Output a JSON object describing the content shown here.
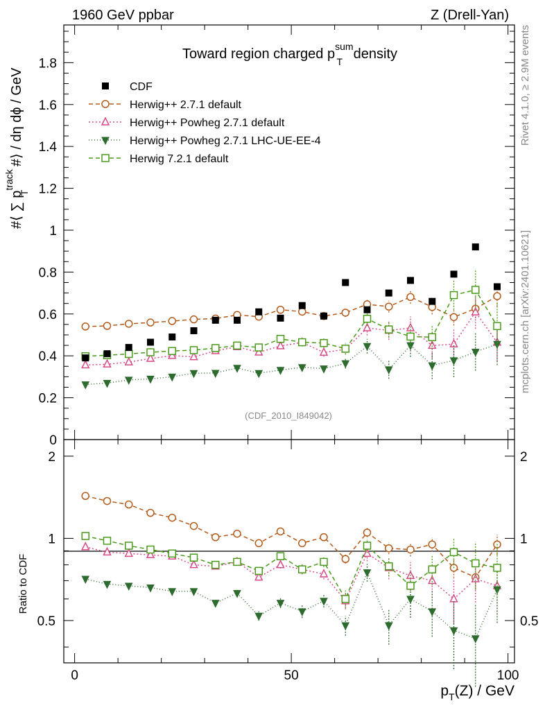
{
  "header": {
    "left": "1960 GeV ppbar",
    "right": "Z (Drell-Yan)"
  },
  "side": {
    "rivet": "Rivet 4.1.0, ≥ 2.9M events",
    "mcplots": "mcplots.cern.ch [arXiv:2401.10621]"
  },
  "chart_data": {
    "type": "scatter",
    "title_parts": {
      "main": "Toward region charged p",
      "sup": "sum",
      "sub": "T",
      "tail": " density"
    },
    "watermark": "(CDF_2010_I849042)",
    "ylabel_parts": [
      "#⟨ ∑ p",
      "track",
      "T",
      " #⟩ / dη dϕ / GeV"
    ],
    "xlabel_parts": {
      "main": "p",
      "sub": "T",
      "tail": "(Z) / GeV"
    },
    "ratio_ylabel": "Ratio to CDF",
    "xlim": [
      -2.5,
      101.5
    ],
    "ylim_main": [
      0,
      1.98
    ],
    "ylim_ratio": [
      0.35,
      2.3
    ],
    "main_yticks": [
      "0",
      "0.2",
      "0.4",
      "0.6",
      "0.8",
      "1",
      "1.2",
      "1.4",
      "1.6",
      "1.8"
    ],
    "ratio_yticks": [
      "0.5",
      "1",
      "2"
    ],
    "xticks": [
      "0",
      "50",
      "100"
    ],
    "x": [
      2.5,
      7.5,
      12.5,
      17.5,
      22.5,
      27.5,
      32.5,
      37.5,
      42.5,
      47.5,
      52.5,
      57.5,
      62.5,
      67.5,
      72.5,
      77.5,
      82.5,
      87.5,
      92.5,
      97.5
    ],
    "data": {
      "name": "CDF",
      "values": [
        0.39,
        0.41,
        0.44,
        0.465,
        0.49,
        0.52,
        0.57,
        0.57,
        0.61,
        0.58,
        0.64,
        0.59,
        0.75,
        0.62,
        0.7,
        0.76,
        0.66,
        0.79,
        0.92,
        0.73
      ]
    },
    "series": [
      {
        "name": "Herwig++ 2.7.1 default",
        "color": "#b35a1a",
        "marker": "circle-open",
        "dash": "6,4",
        "values": [
          0.54,
          0.543,
          0.553,
          0.559,
          0.566,
          0.574,
          0.578,
          0.595,
          0.587,
          0.62,
          0.611,
          0.59,
          0.606,
          0.646,
          0.635,
          0.681,
          0.633,
          0.585,
          0.625,
          0.685
        ],
        "ratio": [
          1.43,
          1.37,
          1.33,
          1.24,
          1.19,
          1.11,
          1.01,
          1.04,
          0.96,
          1.06,
          0.96,
          1.01,
          0.84,
          1.05,
          0.92,
          0.91,
          0.95,
          0.78,
          0.72,
          0.95
        ],
        "err": [
          0.005,
          0.005,
          0.005,
          0.005,
          0.006,
          0.007,
          0.008,
          0.01,
          0.012,
          0.014,
          0.016,
          0.018,
          0.02,
          0.025,
          0.028,
          0.032,
          0.035,
          0.04,
          0.045,
          0.05
        ]
      },
      {
        "name": "Herwig++ Powheg 2.7.1 default",
        "color": "#d84a88",
        "marker": "triangle-open",
        "dash": "2,3",
        "values": [
          0.356,
          0.36,
          0.37,
          0.387,
          0.401,
          0.395,
          0.424,
          0.443,
          0.417,
          0.447,
          0.464,
          0.416,
          0.431,
          0.533,
          0.521,
          0.533,
          0.449,
          0.456,
          0.609,
          0.464
        ],
        "ratio": [
          0.93,
          0.89,
          0.88,
          0.87,
          0.86,
          0.8,
          0.79,
          0.82,
          0.72,
          0.8,
          0.77,
          0.74,
          0.59,
          0.88,
          0.78,
          0.73,
          0.7,
          0.6,
          0.71,
          0.67
        ],
        "err": [
          0.005,
          0.005,
          0.005,
          0.006,
          0.007,
          0.008,
          0.009,
          0.011,
          0.013,
          0.015,
          0.018,
          0.02,
          0.025,
          0.035,
          0.045,
          0.055,
          0.06,
          0.07,
          0.08,
          0.09
        ]
      },
      {
        "name": "Herwig++ Powheg 2.7.1 LHC-UE-EE-4",
        "color": "#2e6b2e",
        "marker": "triangle-down-filled",
        "dash": "1,3",
        "values": [
          0.263,
          0.27,
          0.285,
          0.29,
          0.3,
          0.317,
          0.318,
          0.342,
          0.317,
          0.332,
          0.345,
          0.339,
          0.364,
          0.446,
          0.335,
          0.45,
          0.354,
          0.378,
          0.419,
          0.456
        ],
        "ratio": [
          0.71,
          0.68,
          0.67,
          0.66,
          0.64,
          0.64,
          0.58,
          0.63,
          0.52,
          0.58,
          0.54,
          0.59,
          0.48,
          0.75,
          0.48,
          0.6,
          0.54,
          0.46,
          0.43,
          0.65
        ],
        "err": [
          0.004,
          0.004,
          0.005,
          0.006,
          0.007,
          0.008,
          0.009,
          0.011,
          0.013,
          0.015,
          0.018,
          0.02,
          0.025,
          0.035,
          0.045,
          0.055,
          0.065,
          0.08,
          0.09,
          0.1
        ]
      },
      {
        "name": "Herwig 7.2.1 default",
        "color": "#4a9a1a",
        "marker": "square-open",
        "dash": "6,4",
        "values": [
          0.398,
          0.403,
          0.409,
          0.417,
          0.423,
          0.427,
          0.437,
          0.449,
          0.44,
          0.481,
          0.465,
          0.461,
          0.434,
          0.577,
          0.526,
          0.492,
          0.489,
          0.69,
          0.715,
          0.542
        ],
        "ratio": [
          1.02,
          0.98,
          0.94,
          0.91,
          0.88,
          0.85,
          0.8,
          0.82,
          0.76,
          0.86,
          0.77,
          0.82,
          0.6,
          0.94,
          0.79,
          0.67,
          0.77,
          0.89,
          0.81,
          0.78
        ],
        "err": [
          0.005,
          0.005,
          0.006,
          0.006,
          0.007,
          0.008,
          0.01,
          0.012,
          0.014,
          0.016,
          0.02,
          0.022,
          0.028,
          0.035,
          0.04,
          0.05,
          0.06,
          0.07,
          0.1,
          0.11
        ]
      }
    ]
  }
}
